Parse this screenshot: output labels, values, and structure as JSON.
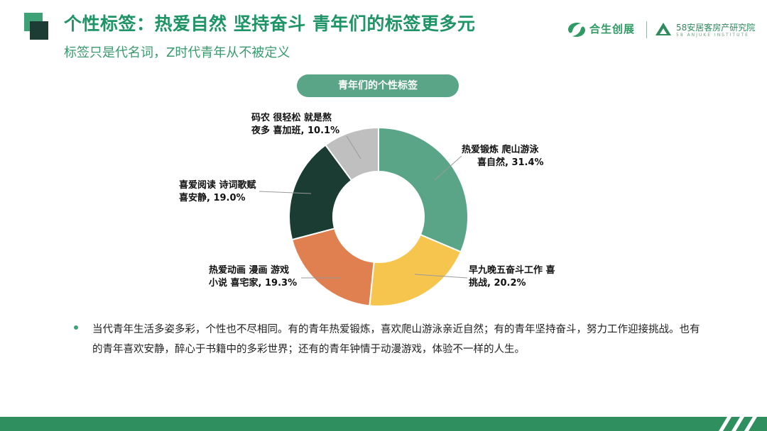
{
  "header": {
    "title": "个性标签：热爱自然 坚持奋斗 青年们的标签更多元",
    "subtitle": "标签只是代名词，Z时代青年从不被定义"
  },
  "logos": {
    "left": {
      "name": "合生创展"
    },
    "right": {
      "name": "58安居客房产研究院",
      "sub": "58 ANJUKE INSTITUTE"
    }
  },
  "colors": {
    "brand_green": "#1f9466",
    "slice_fitness": "#5aa587",
    "slice_work": "#f6c54e",
    "slice_anime": "#e07f4f",
    "slice_reading": "#1b3c33",
    "slice_overtime": "#bfbfbf"
  },
  "chart_data": {
    "type": "pie",
    "donut": true,
    "title": "青年们的个性标签",
    "slices": [
      {
        "label_line1": "热爱锻炼 爬山游泳",
        "label_line2": "喜自然, 31.4%",
        "value": 31.4,
        "color": "#5aa587"
      },
      {
        "label_line1": "早九晚五奋斗工作 喜",
        "label_line2": "挑战, 20.2%",
        "value": 20.2,
        "color": "#f6c54e"
      },
      {
        "label_line1": "热爱动画 漫画  游戏",
        "label_line2": "小说  喜宅家, 19.3%",
        "value": 19.3,
        "color": "#e07f4f"
      },
      {
        "label_line1": "喜爱阅读 诗词歌赋",
        "label_line2": "喜安静, 19.0%",
        "value": 19.0,
        "color": "#1b3c33"
      },
      {
        "label_line1": "码农 很轻松 就是熬",
        "label_line2": "夜多 喜加班, 10.1%",
        "value": 10.1,
        "color": "#bfbfbf"
      }
    ]
  },
  "body": {
    "text": "当代青年生活多姿多彩，个性也不尽相同。有的青年热爱锻炼，喜欢爬山游泳亲近自然；有的青年坚持奋斗，努力工作迎接挑战。也有的青年喜欢安静，醉心于书籍中的多彩世界；还有的青年钟情于动漫游戏，体验不一样的人生。"
  }
}
